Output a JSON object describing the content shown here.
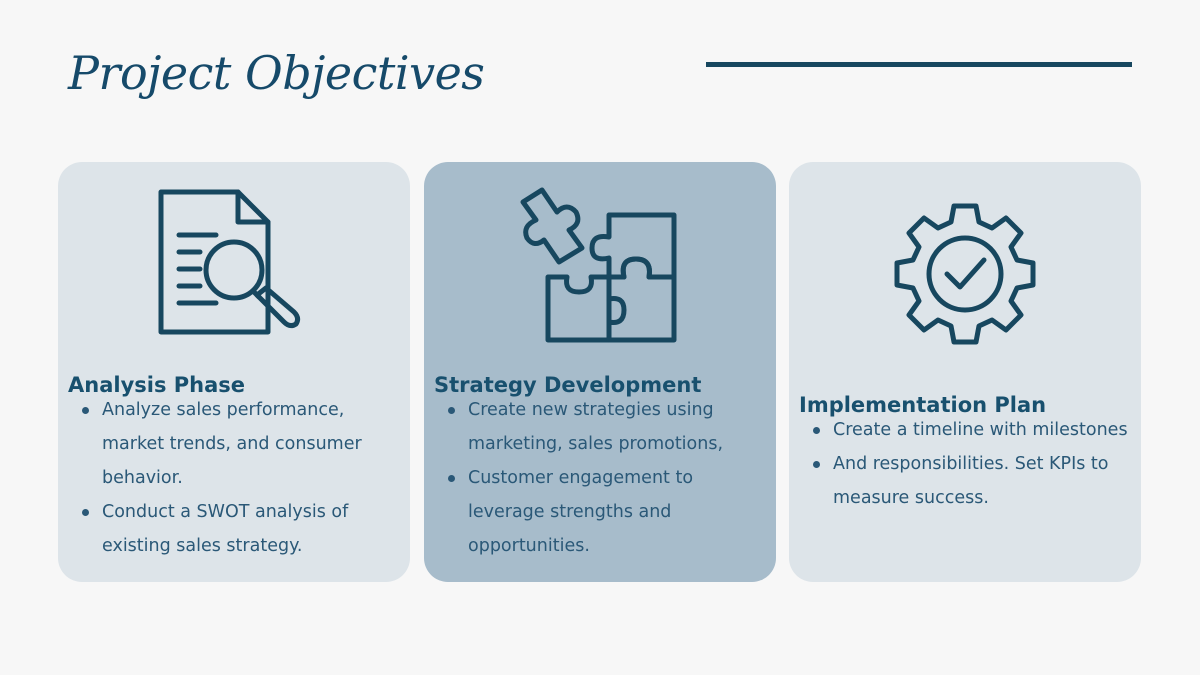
{
  "slide": {
    "title": "Project Objectives"
  },
  "cards": [
    {
      "icon": "document-search-icon",
      "title": "Analysis Phase",
      "bullets": [
        "Analyze sales performance, market trends, and consumer behavior.",
        "Conduct a SWOT analysis of existing sales strategy."
      ]
    },
    {
      "icon": "puzzle-icon",
      "title": "Strategy Development",
      "bullets": [
        "Create new strategies using marketing, sales promotions,",
        "Customer engagement to leverage strengths and opportunities."
      ]
    },
    {
      "icon": "gear-check-icon",
      "title": "Implementation Plan",
      "bullets": [
        "Create a timeline with milestones",
        "And responsibilities. Set KPIs to measure success."
      ]
    }
  ],
  "colors": {
    "background": "#f7f7f7",
    "card": "#dde4e9",
    "card_highlight": "#a7bccb",
    "accent": "#17475f"
  }
}
